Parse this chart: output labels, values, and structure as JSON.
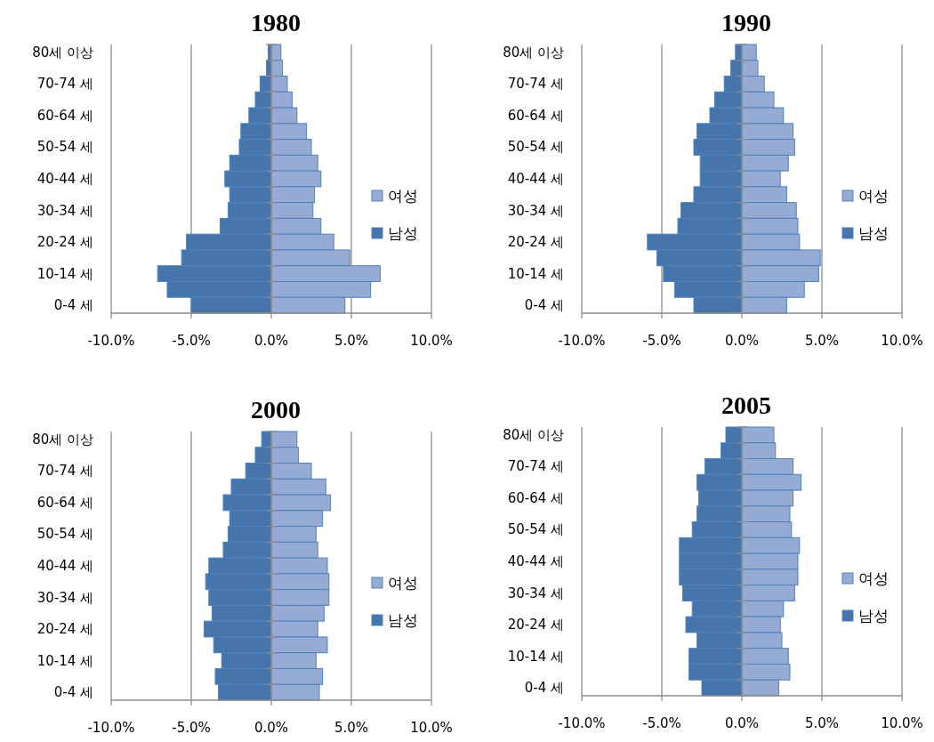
{
  "chart_data": [
    {
      "type": "bar",
      "title": "1980",
      "orientation": "horizontal",
      "stacked": true,
      "grid": "x",
      "legend": "right",
      "categories": [
        "80세 이상",
        null,
        "70-74 세",
        null,
        "60-64 세",
        null,
        "50-54 세",
        null,
        "40-44 세",
        null,
        "30-34 세",
        null,
        "20-24 세",
        null,
        "10-14 세",
        null,
        "0-4 세"
      ],
      "xlim": [
        -10,
        10
      ],
      "xticks": [
        {
          "value": -10,
          "label": "-10.0%"
        },
        {
          "value": -5,
          "label": "-5.0%"
        },
        {
          "value": 0,
          "label": "0.0%"
        },
        {
          "value": 5,
          "label": "5.0%"
        },
        {
          "value": 10,
          "label": "10.0%"
        }
      ],
      "series": [
        {
          "name": "여성",
          "color": "#95abd3",
          "values": [
            0.6,
            0.7,
            1.0,
            1.3,
            1.6,
            2.2,
            2.5,
            2.9,
            3.1,
            2.7,
            2.6,
            3.1,
            3.9,
            4.9,
            6.8,
            6.2,
            4.6
          ]
        },
        {
          "name": "남성",
          "color": "#4675ab",
          "values": [
            -0.2,
            -0.3,
            -0.7,
            -1.0,
            -1.4,
            -1.9,
            -2.0,
            -2.6,
            -2.9,
            -2.6,
            -2.7,
            -3.2,
            -5.3,
            -5.6,
            -7.1,
            -6.5,
            -5.0
          ]
        }
      ]
    },
    {
      "type": "bar",
      "title": "1990",
      "orientation": "horizontal",
      "stacked": true,
      "grid": "x",
      "legend": "right",
      "categories": [
        "80세 이상",
        null,
        "70-74 세",
        null,
        "60-64 세",
        null,
        "50-54 세",
        null,
        "40-44 세",
        null,
        "30-34 세",
        null,
        "20-24 세",
        null,
        "10-14 세",
        null,
        "0-4 세"
      ],
      "xlim": [
        -10,
        10
      ],
      "xticks": [
        {
          "value": -10,
          "label": "-10.0%"
        },
        {
          "value": -5,
          "label": "-5.0%"
        },
        {
          "value": 0,
          "label": "0.0%"
        },
        {
          "value": 5,
          "label": "5.0%"
        },
        {
          "value": 10,
          "label": "10.0%"
        }
      ],
      "series": [
        {
          "name": "여성",
          "color": "#95abd3",
          "values": [
            0.9,
            1.0,
            1.4,
            2.0,
            2.6,
            3.2,
            3.3,
            2.9,
            2.4,
            2.8,
            3.4,
            3.5,
            3.6,
            4.9,
            4.8,
            3.9,
            2.8
          ]
        },
        {
          "name": "남성",
          "color": "#4675ab",
          "values": [
            -0.4,
            -0.7,
            -1.1,
            -1.7,
            -2.0,
            -2.8,
            -3.0,
            -2.6,
            -2.6,
            -3.0,
            -3.8,
            -4.0,
            -5.9,
            -5.3,
            -4.9,
            -4.2,
            -3.0
          ]
        }
      ]
    },
    {
      "type": "bar",
      "title": "2000",
      "orientation": "horizontal",
      "stacked": true,
      "grid": "x",
      "legend": "right",
      "categories": [
        "80세 이상",
        null,
        "70-74 세",
        null,
        "60-64 세",
        null,
        "50-54 세",
        null,
        "40-44 세",
        null,
        "30-34 세",
        null,
        "20-24 세",
        null,
        "10-14 세",
        null,
        "0-4 세"
      ],
      "xlim": [
        -10,
        10
      ],
      "xticks": [
        {
          "value": -10,
          "label": "-10.0%"
        },
        {
          "value": -5,
          "label": "-5.0%"
        },
        {
          "value": 0,
          "label": "0.0%"
        },
        {
          "value": 5,
          "label": "5.0%"
        },
        {
          "value": 10,
          "label": "10.0%"
        }
      ],
      "series": [
        {
          "name": "여성",
          "color": "#95abd3",
          "values": [
            1.6,
            1.7,
            2.5,
            3.4,
            3.7,
            3.2,
            2.8,
            2.9,
            3.5,
            3.6,
            3.6,
            3.3,
            2.9,
            3.5,
            2.8,
            3.2,
            3.0
          ]
        },
        {
          "name": "남성",
          "color": "#4675ab",
          "values": [
            -0.6,
            -1.0,
            -1.6,
            -2.5,
            -3.0,
            -2.6,
            -2.7,
            -3.0,
            -3.9,
            -4.1,
            -3.9,
            -3.7,
            -4.2,
            -3.6,
            -3.1,
            -3.5,
            -3.3
          ]
        }
      ]
    },
    {
      "type": "bar",
      "title": "2005",
      "orientation": "horizontal",
      "stacked": true,
      "grid": "x",
      "legend": "right",
      "categories": [
        "80세 이상",
        null,
        "70-74 세",
        null,
        "60-64 세",
        null,
        "50-54 세",
        null,
        "40-44 세",
        null,
        "30-34 세",
        null,
        "20-24 세",
        null,
        "10-14 세",
        null,
        "0-4 세"
      ],
      "xlim": [
        -10,
        10
      ],
      "xticks": [
        {
          "value": -10,
          "label": "-10.0%"
        },
        {
          "value": -5,
          "label": "-5.0%"
        },
        {
          "value": 0,
          "label": "0.0%"
        },
        {
          "value": 5,
          "label": "5.0%"
        },
        {
          "value": 10,
          "label": "10.0%"
        }
      ],
      "series": [
        {
          "name": "여성",
          "color": "#95abd3",
          "values": [
            2.0,
            2.1,
            3.2,
            3.7,
            3.2,
            3.0,
            3.1,
            3.6,
            3.5,
            3.5,
            3.3,
            2.6,
            2.4,
            2.5,
            2.9,
            3.0,
            2.3
          ]
        },
        {
          "name": "남성",
          "color": "#4675ab",
          "values": [
            -1.0,
            -1.3,
            -2.3,
            -2.8,
            -2.7,
            -2.8,
            -3.1,
            -3.9,
            -3.9,
            -3.9,
            -3.7,
            -3.1,
            -3.5,
            -2.8,
            -3.3,
            -3.3,
            -2.5
          ]
        }
      ]
    }
  ]
}
